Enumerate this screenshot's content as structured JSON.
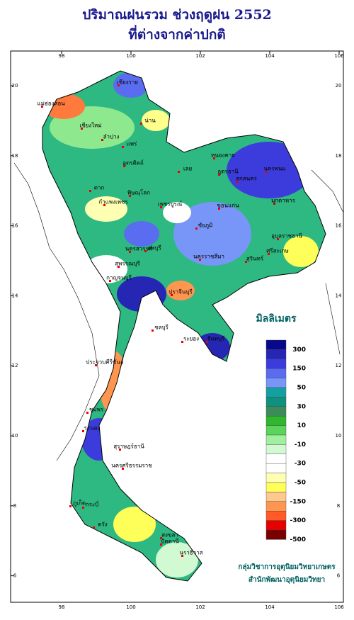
{
  "title": [
    "ปริมาณฝนรวม ช่วงฤดูฝน 2552",
    "ที่ต่างจากค่าปกติ"
  ],
  "lon_ticks": [
    98,
    100,
    102,
    104,
    106
  ],
  "lat_ticks": [
    20,
    18,
    16,
    14,
    12,
    10,
    8,
    6
  ],
  "legend": {
    "title": "มิลลิเมตร",
    "labels": [
      300,
      150,
      50,
      30,
      10,
      -10,
      -30,
      -50,
      -150,
      -300,
      -500
    ],
    "colors": [
      "#08088c",
      "#2626b4",
      "#3c3cdc",
      "#5a6cf0",
      "#7896f8",
      "#14a0a0",
      "#10907e",
      "#3c8c5a",
      "#2eb82e",
      "#5ad45a",
      "#a0f0a0",
      "#d2fad2",
      "#ffffff",
      "#ffffff",
      "#ffffb4",
      "#ffff5a",
      "#ffc88c",
      "#ff9650",
      "#ff5a28",
      "#e60000",
      "#7a0000"
    ]
  },
  "credits": [
    "กลุ่มวิชาการอุตุนิยมวิทยาเกษตร",
    "สำนักพัฒนาอุตุนิยมวิทยา"
  ],
  "places": [
    "เชียงราย",
    "แม่ฮ่องสอน",
    "เชียงใหม่",
    "น่าน",
    "ลำปาง",
    "แพร่",
    "ตาก",
    "อุตรดิตถ์",
    "พิษณุโลก",
    "กำแพงเพชร",
    "เพชรบูรณ์",
    "นครสวรรค์",
    "เลย",
    "หนองคาย",
    "อุดรธานี",
    "นครพนม",
    "สกลนคร",
    "มุกดาหาร",
    "ขอนแก่น",
    "ชัยภูมิ",
    "อุบลราชธานี",
    "นครราชสีมา",
    "สุรินทร์",
    "ศรีสะเกษ",
    "กาญจนบุรี",
    "สุพรรณบุรี",
    "ลพบุรี",
    "ปราจีนบุรี",
    "ชลบุรี",
    "ระยอง",
    "จันทบุรี",
    "ประจวบคีรีขันธ์",
    "ชุมพร",
    "ระนอง",
    "สุราษฎร์ธานี",
    "นครศรีธรรมราช",
    "ภูเก็ต",
    "กระบี่",
    "ตรัง",
    "สงขลา",
    "ปัตตานี",
    "นราธิวาส"
  ]
}
